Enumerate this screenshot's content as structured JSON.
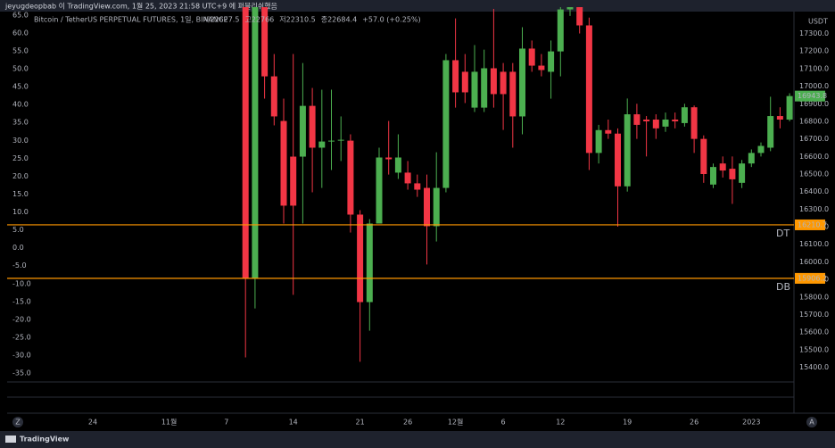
{
  "header": "jeyugdeopbab 이 TradingView.com, 1월 25, 2023 21:58 UTC+9 에 퍼블리쉬했음",
  "footer": "TradingView",
  "ui": {
    "left_button": "Z",
    "right_button": "A"
  },
  "chart_data": {
    "type": "candlestick",
    "title": "Bitcoin / TetherUS PERPETUAL FUTURES, 1일, BINANCE",
    "info": [
      "시22627.5",
      "고22766",
      "저22310.5",
      "종22684.4",
      "+57.0 (+0.25%)"
    ],
    "currency": "USDT",
    "colors": {
      "up": "#4caf50",
      "down": "#f23645"
    },
    "categories": [
      "24",
      null,
      null,
      null,
      null,
      null,
      null,
      null,
      "11월",
      null,
      null,
      null,
      null,
      null,
      "7",
      null,
      null,
      null,
      null,
      null,
      null,
      "14",
      null,
      null,
      null,
      null,
      null,
      null,
      "21",
      null,
      null,
      null,
      null,
      "26",
      null,
      null,
      null,
      null,
      "12월",
      null,
      null,
      null,
      null,
      "6",
      null,
      null,
      null,
      null,
      null,
      "12",
      null,
      null,
      null,
      null,
      null,
      null,
      "19",
      null,
      null,
      null,
      null,
      null,
      null,
      "26",
      null,
      null,
      null,
      null,
      null,
      "2023",
      null,
      null,
      null,
      null
    ],
    "open": [
      null,
      null,
      null,
      null,
      null,
      null,
      null,
      null,
      null,
      null,
      null,
      null,
      null,
      null,
      null,
      null,
      18000,
      15903,
      17700,
      17056,
      16802,
      16599,
      16599,
      16888,
      16650,
      16685,
      16690,
      16690,
      16269,
      15771,
      16218,
      16594,
      16508,
      16508,
      16447,
      16421,
      16203,
      16421,
      17148,
      17082,
      16878,
      16878,
      17102,
      17082,
      17082,
      16828,
      17214,
      17117,
      17082,
      17198,
      17437,
      17500,
      17346,
      16620,
      16750,
      16730,
      16430,
      16840,
      16810,
      16810,
      16770,
      16810,
      16790,
      16880,
      16700,
      16440,
      16560,
      16530,
      16450,
      16560,
      16620,
      16650,
      16830,
      16810
    ],
    "high": [
      null,
      null,
      null,
      null,
      null,
      null,
      null,
      null,
      null,
      null,
      null,
      null,
      null,
      null,
      null,
      null,
      18100,
      17900,
      17900,
      17183,
      16929,
      17183,
      17132,
      16990,
      16980,
      16980,
      16828,
      16726,
      16294,
      16243,
      16650,
      16802,
      16726,
      16574,
      16497,
      16497,
      16624,
      17183,
      17386,
      17183,
      17234,
      17208,
      17440,
      17132,
      17132,
      17336,
      17260,
      17183,
      17260,
      17590,
      17700,
      17550,
      17390,
      16780,
      16810,
      16760,
      16930,
      16900,
      16830,
      16840,
      16850,
      16850,
      16900,
      16890,
      16720,
      16560,
      16600,
      16600,
      16580,
      16640,
      16680,
      16940,
      16880,
      16960
    ],
    "low": [
      null,
      null,
      null,
      null,
      null,
      null,
      null,
      null,
      null,
      null,
      null,
      null,
      null,
      null,
      null,
      null,
      15456,
      15735,
      16929,
      16777,
      16218,
      15812,
      16218,
      16396,
      16421,
      16523,
      16574,
      16167,
      15431,
      15608,
      16218,
      16497,
      16472,
      16411,
      16370,
      15985,
      16116,
      16396,
      16878,
      16904,
      16853,
      16853,
      16878,
      16751,
      16650,
      16726,
      17082,
      17056,
      16929,
      17056,
      17400,
      17300,
      16523,
      16560,
      16700,
      16200,
      16400,
      16700,
      16600,
      16700,
      16740,
      16760,
      16770,
      16620,
      16450,
      16420,
      16480,
      16330,
      16420,
      16540,
      16600,
      16630,
      16760,
      16800
    ],
    "close": [
      null,
      null,
      null,
      null,
      null,
      null,
      null,
      null,
      null,
      null,
      null,
      null,
      null,
      null,
      null,
      null,
      15903,
      17700,
      17056,
      16828,
      16320,
      16320,
      16888,
      16650,
      16685,
      16690,
      16695,
      16269,
      15771,
      16218,
      16594,
      16584,
      16594,
      16447,
      16411,
      16203,
      16421,
      17148,
      16965,
      16965,
      17082,
      17102,
      16955,
      16955,
      16828,
      17214,
      17117,
      17092,
      17198,
      17437,
      17600,
      17346,
      16620,
      16750,
      16730,
      16430,
      16840,
      16780,
      16800,
      16760,
      16810,
      16800,
      16880,
      16700,
      16500,
      16540,
      16520,
      16470,
      16560,
      16620,
      16660,
      16830,
      16810,
      16943.8
    ],
    "levels": [
      {
        "name": "DT",
        "value": 16210.7,
        "color": "#ff9800"
      },
      {
        "name": "DB",
        "value": 15906.2,
        "color": "#ff9800"
      }
    ],
    "ylim": [
      15230,
      17450
    ],
    "yticks": [
      {
        "value": 15400,
        "label": "15400.0"
      },
      {
        "value": 15500,
        "label": "15500.0"
      },
      {
        "value": 15600,
        "label": "15600.0"
      },
      {
        "value": 15700,
        "label": "15700.0"
      },
      {
        "value": 15800,
        "label": "15800.0"
      },
      {
        "value": 15900,
        "label": "15900.0"
      },
      {
        "value": 16000,
        "label": "16000.0"
      },
      {
        "value": 16100,
        "label": "16100.0"
      },
      {
        "value": 16200,
        "label": "16200.0"
      },
      {
        "value": 16300,
        "label": "16300.0"
      },
      {
        "value": 16400,
        "label": "16400.0"
      },
      {
        "value": 16500,
        "label": "16500.0"
      },
      {
        "value": 16600,
        "label": "16600.0"
      },
      {
        "value": 16700,
        "label": "16700.0"
      },
      {
        "value": 16800,
        "label": "16800.0"
      },
      {
        "value": 16900,
        "label": "16900.0"
      },
      {
        "value": 17000,
        "label": "17000.0"
      },
      {
        "value": 17100,
        "label": "17100.0"
      },
      {
        "value": 17200,
        "label": "17200.0"
      },
      {
        "value": 17300,
        "label": "17300.0"
      }
    ],
    "y2lim": [
      -41.7,
      67.2
    ],
    "y2ticks": [
      {
        "value": 65,
        "label": "65.0"
      },
      {
        "value": 60,
        "label": "60.0"
      },
      {
        "value": 55,
        "label": "55.0"
      },
      {
        "value": 50,
        "label": "50.0"
      },
      {
        "value": 45,
        "label": "45.0"
      },
      {
        "value": 40,
        "label": "40.0"
      },
      {
        "value": 35,
        "label": "35.0"
      },
      {
        "value": 30,
        "label": "30.0"
      },
      {
        "value": 25,
        "label": "25.0"
      },
      {
        "value": 20,
        "label": "20.0"
      },
      {
        "value": 15,
        "label": "15.0"
      },
      {
        "value": 10,
        "label": "10.0"
      },
      {
        "value": 5,
        "label": "5.0"
      },
      {
        "value": 0,
        "label": "0.0"
      },
      {
        "value": -5,
        "label": "-5.0"
      },
      {
        "value": -10,
        "label": "-10.0"
      },
      {
        "value": -15,
        "label": "-15.0"
      },
      {
        "value": -20,
        "label": "-20.0"
      },
      {
        "value": -25,
        "label": "-25.0"
      },
      {
        "value": -30,
        "label": "-30.0"
      },
      {
        "value": -35,
        "label": "-35.0"
      }
    ]
  }
}
